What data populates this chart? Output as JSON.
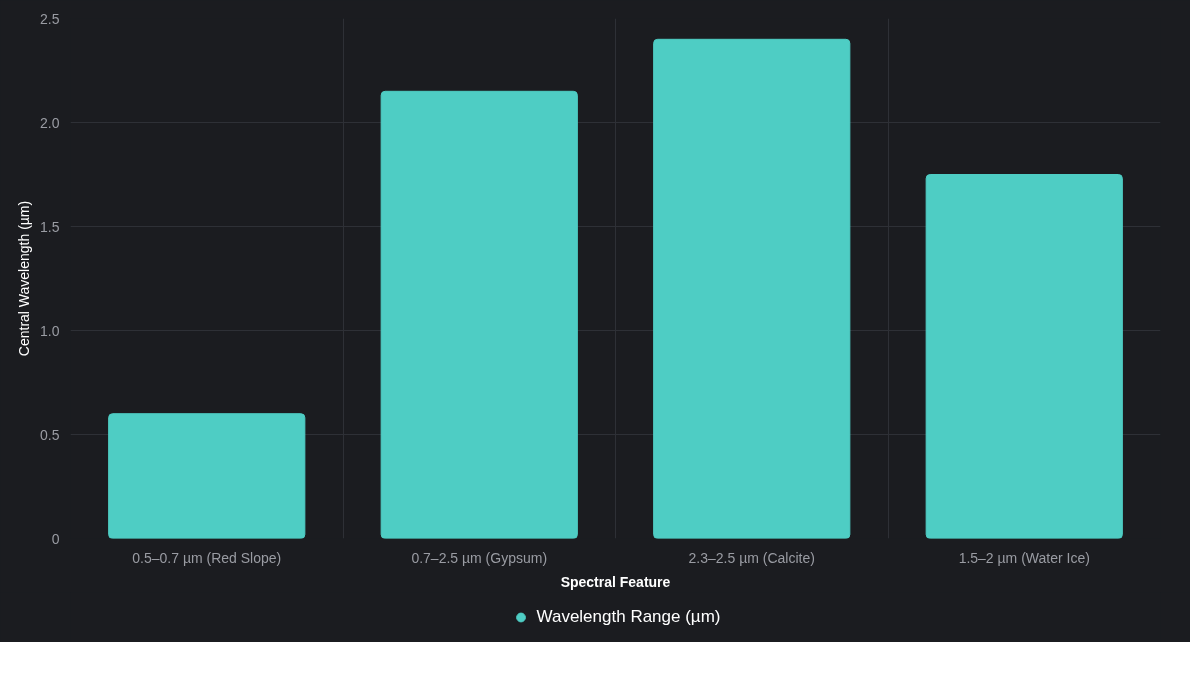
{
  "chart_data": {
    "type": "bar",
    "xlabel": "Spectral Feature",
    "ylabel": "Central Wavelength (µm)",
    "categories": [
      "0.5–0.7 µm (Red Slope)",
      "0.7–2.5 µm (Gypsum)",
      "2.3–2.5 µm (Calcite)",
      "1.5–2 µm (Water Ice)"
    ],
    "series": [
      {
        "name": "Wavelength Range (µm)",
        "color": "#4ecdc4",
        "values": [
          0.6,
          2.15,
          2.4,
          1.75
        ]
      }
    ],
    "ylim": [
      0,
      2.5
    ],
    "yticks": [
      0,
      {
        "value": 0.5,
        "label": "0.5"
      },
      {
        "value": 1,
        "label": "1.0"
      },
      {
        "value": 1.5,
        "label": "1.5"
      },
      {
        "value": 2,
        "label": "2.0"
      },
      {
        "value": 2.5,
        "label": "2.5"
      }
    ],
    "grid": true,
    "legend": "bottom"
  }
}
